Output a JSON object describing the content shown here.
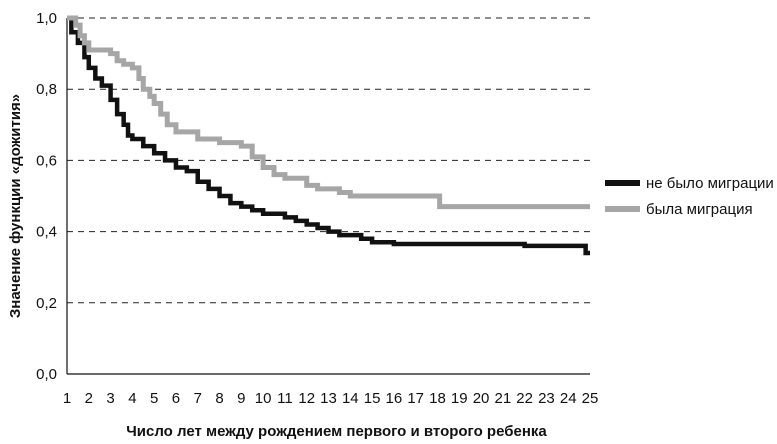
{
  "chart_data": {
    "type": "line",
    "title": "",
    "xlabel": "Число лет между рождением первого и второго ребенка",
    "ylabel": "Значение функции «дожития»",
    "x_ticks": [
      "1",
      "2",
      "3",
      "4",
      "5",
      "6",
      "7",
      "8",
      "9",
      "10",
      "11",
      "12",
      "13",
      "14",
      "15",
      "16",
      "17",
      "18",
      "19",
      "20",
      "21",
      "22",
      "23",
      "24",
      "25"
    ],
    "y_ticks": [
      "0,0",
      "0,2",
      "0,4",
      "0,6",
      "0,8",
      "1,0"
    ],
    "xlim": [
      1,
      25
    ],
    "ylim": [
      0,
      1
    ],
    "grid": "horizontal dashed",
    "legend_position": "right",
    "series": [
      {
        "name": "не было миграции",
        "color": "#111111",
        "style": "step",
        "points": [
          [
            1,
            1.0
          ],
          [
            1.2,
            0.96
          ],
          [
            1.5,
            0.93
          ],
          [
            1.8,
            0.89
          ],
          [
            2.0,
            0.86
          ],
          [
            2.3,
            0.83
          ],
          [
            2.6,
            0.81
          ],
          [
            3.0,
            0.77
          ],
          [
            3.3,
            0.73
          ],
          [
            3.6,
            0.7
          ],
          [
            3.8,
            0.67
          ],
          [
            4.0,
            0.66
          ],
          [
            4.5,
            0.64
          ],
          [
            5.0,
            0.62
          ],
          [
            5.5,
            0.6
          ],
          [
            6.0,
            0.58
          ],
          [
            6.5,
            0.57
          ],
          [
            7.0,
            0.54
          ],
          [
            7.5,
            0.52
          ],
          [
            8.0,
            0.5
          ],
          [
            8.5,
            0.48
          ],
          [
            9.0,
            0.47
          ],
          [
            9.5,
            0.46
          ],
          [
            10.0,
            0.45
          ],
          [
            11.0,
            0.44
          ],
          [
            11.5,
            0.43
          ],
          [
            12.0,
            0.42
          ],
          [
            12.5,
            0.41
          ],
          [
            13.0,
            0.4
          ],
          [
            13.5,
            0.39
          ],
          [
            14.5,
            0.38
          ],
          [
            15.0,
            0.37
          ],
          [
            16.0,
            0.365
          ],
          [
            18.0,
            0.365
          ],
          [
            20.0,
            0.365
          ],
          [
            22.0,
            0.36
          ],
          [
            24.7,
            0.36
          ],
          [
            24.8,
            0.34
          ],
          [
            25,
            0.34
          ]
        ]
      },
      {
        "name": "была миграция",
        "color": "#a6a6a6",
        "style": "step",
        "points": [
          [
            1,
            1.0
          ],
          [
            1.4,
            0.98
          ],
          [
            1.6,
            0.95
          ],
          [
            1.8,
            0.93
          ],
          [
            2.0,
            0.91
          ],
          [
            3.0,
            0.9
          ],
          [
            3.3,
            0.88
          ],
          [
            3.6,
            0.87
          ],
          [
            4.0,
            0.86
          ],
          [
            4.3,
            0.83
          ],
          [
            4.5,
            0.8
          ],
          [
            4.8,
            0.78
          ],
          [
            5.0,
            0.76
          ],
          [
            5.3,
            0.73
          ],
          [
            5.6,
            0.7
          ],
          [
            6.0,
            0.68
          ],
          [
            7.0,
            0.66
          ],
          [
            8.0,
            0.65
          ],
          [
            9.0,
            0.64
          ],
          [
            9.5,
            0.61
          ],
          [
            10.0,
            0.58
          ],
          [
            10.5,
            0.56
          ],
          [
            11.0,
            0.55
          ],
          [
            12.0,
            0.53
          ],
          [
            12.5,
            0.52
          ],
          [
            13.0,
            0.52
          ],
          [
            13.5,
            0.51
          ],
          [
            14.0,
            0.5
          ],
          [
            16.0,
            0.5
          ],
          [
            18.0,
            0.5
          ],
          [
            18.1,
            0.47
          ],
          [
            20.0,
            0.47
          ],
          [
            25,
            0.47
          ]
        ]
      }
    ]
  }
}
